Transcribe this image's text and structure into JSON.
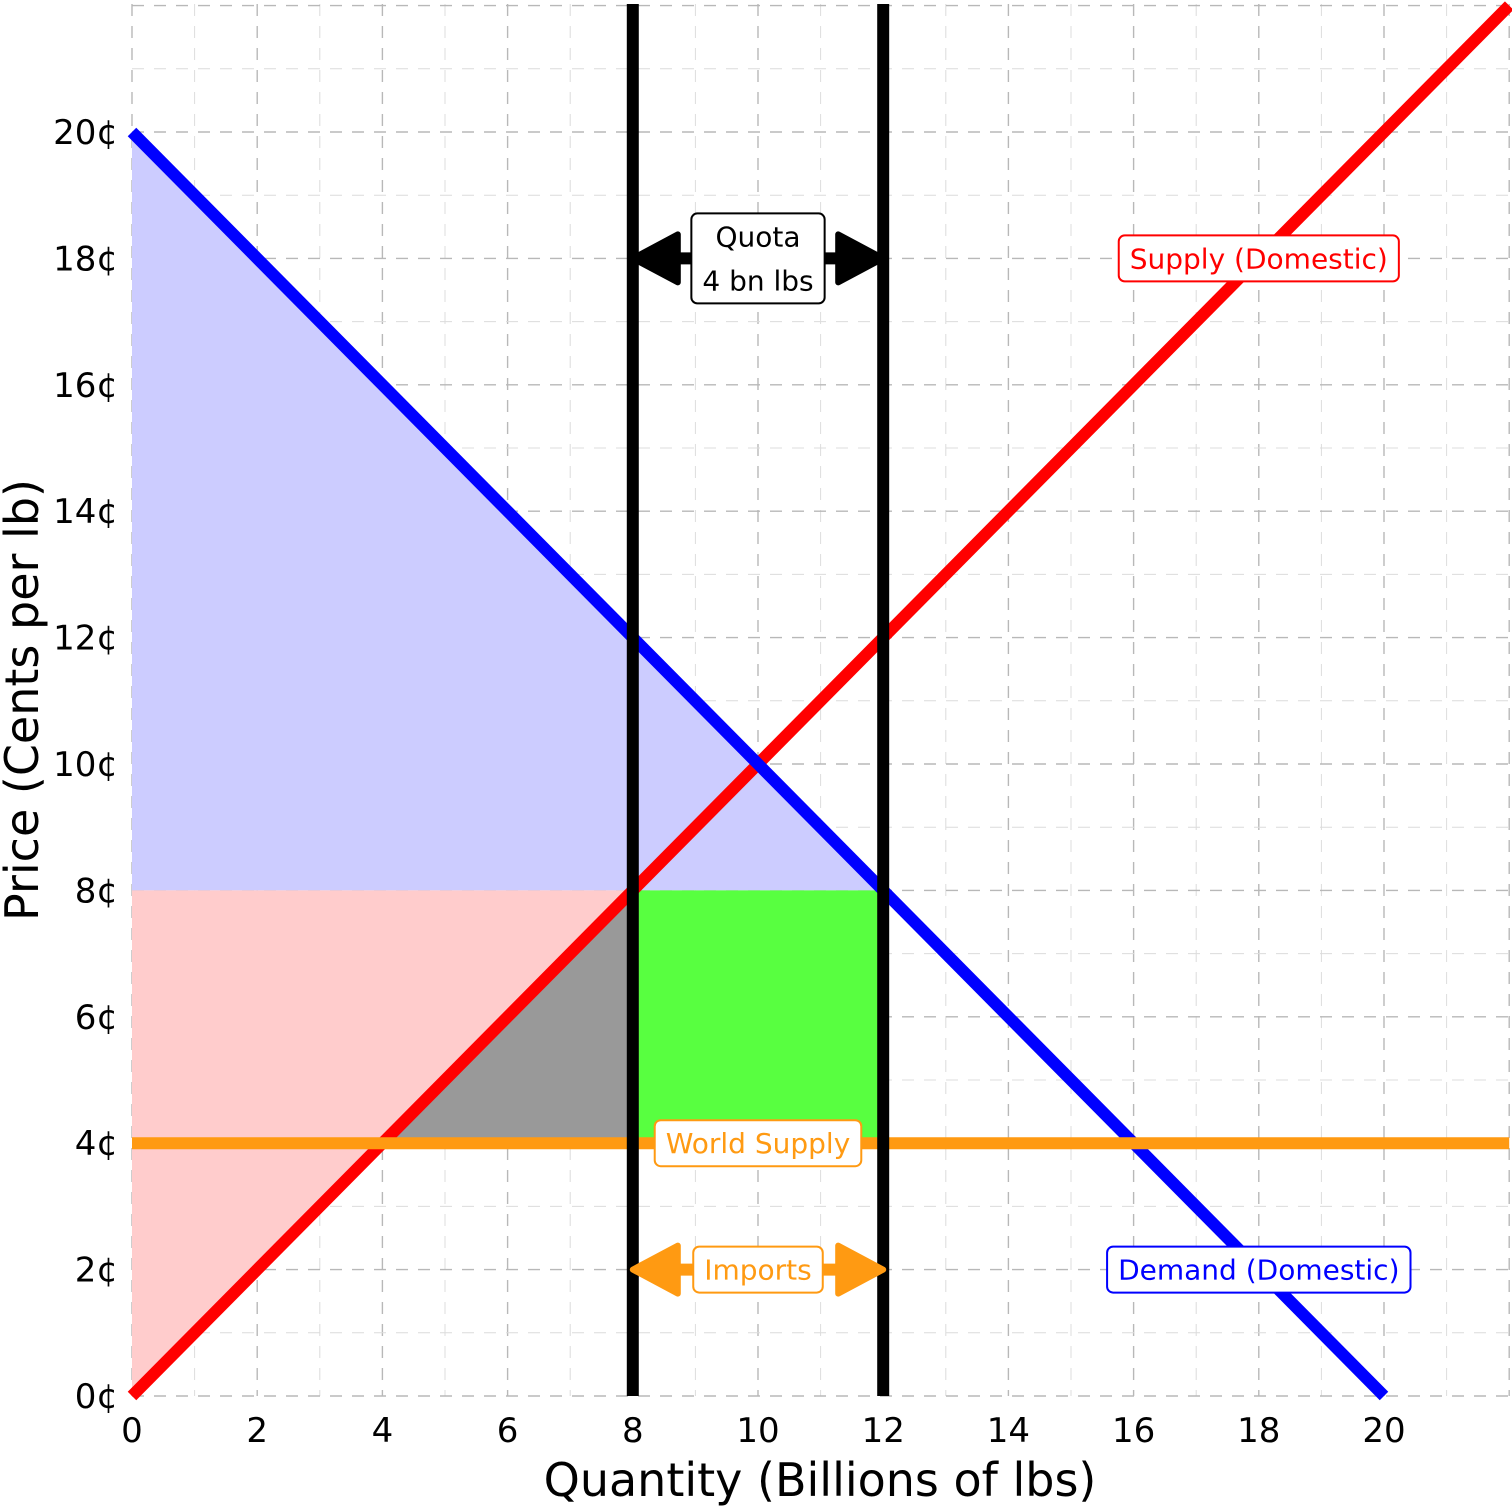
{
  "chart_data": {
    "type": "line",
    "title": "",
    "xlabel": "Quantity (Billions of lbs)",
    "ylabel": "Price (Cents per lb)",
    "xlim": [
      0,
      22
    ],
    "ylim": [
      0,
      22
    ],
    "grid": true,
    "x_ticks": [
      {
        "value": 0,
        "label": "0"
      },
      {
        "value": 2,
        "label": "2"
      },
      {
        "value": 4,
        "label": "4"
      },
      {
        "value": 6,
        "label": "6"
      },
      {
        "value": 8,
        "label": "8"
      },
      {
        "value": 10,
        "label": "10"
      },
      {
        "value": 12,
        "label": "12"
      },
      {
        "value": 14,
        "label": "14"
      },
      {
        "value": 16,
        "label": "16"
      },
      {
        "value": 18,
        "label": "18"
      },
      {
        "value": 20,
        "label": "20"
      }
    ],
    "y_ticks": [
      {
        "value": 0,
        "label": "0¢"
      },
      {
        "value": 2,
        "label": "2¢"
      },
      {
        "value": 4,
        "label": "4¢"
      },
      {
        "value": 6,
        "label": "6¢"
      },
      {
        "value": 8,
        "label": "8¢"
      },
      {
        "value": 10,
        "label": "10¢"
      },
      {
        "value": 12,
        "label": "12¢"
      },
      {
        "value": 14,
        "label": "14¢"
      },
      {
        "value": 16,
        "label": "16¢"
      },
      {
        "value": 18,
        "label": "18¢"
      },
      {
        "value": 20,
        "label": "20¢"
      }
    ],
    "series": [
      {
        "name": "Supply (Domestic)",
        "color": "#ff0000",
        "x": [
          0,
          22
        ],
        "y": [
          0,
          22
        ]
      },
      {
        "name": "Demand (Domestic)",
        "color": "#0000ff",
        "x": [
          0,
          20
        ],
        "y": [
          20,
          0
        ]
      },
      {
        "name": "World Supply",
        "color": "#ff9a12",
        "x": [
          0,
          22
        ],
        "y": [
          4,
          4
        ]
      }
    ],
    "vertical_lines": [
      {
        "x": 8,
        "color": "#000000"
      },
      {
        "x": 12,
        "color": "#000000"
      }
    ],
    "regions": [
      {
        "color": "#ccccff",
        "points": [
          [
            0,
            20
          ],
          [
            0,
            8
          ],
          [
            12,
            8
          ]
        ]
      },
      {
        "color": "#ffcccc",
        "points": [
          [
            0,
            8
          ],
          [
            0,
            0
          ],
          [
            8,
            8
          ]
        ]
      },
      {
        "color": "#999999",
        "points": [
          [
            4,
            4
          ],
          [
            8,
            4
          ],
          [
            8,
            8
          ]
        ]
      },
      {
        "color": "#58ff40",
        "points": [
          [
            8,
            4
          ],
          [
            12,
            4
          ],
          [
            12,
            8
          ],
          [
            8,
            8
          ]
        ]
      }
    ],
    "arrows": [
      {
        "x_from": 8,
        "x_to": 12,
        "y": 18,
        "color": "#000000"
      },
      {
        "x_from": 8,
        "x_to": 12,
        "y": 2,
        "color": "#ff9a12"
      }
    ],
    "annotations": [
      {
        "lines": [
          "Supply (Domestic)"
        ],
        "x": 18,
        "y": 18,
        "color": "#ff0000"
      },
      {
        "lines": [
          "Demand (Domestic)"
        ],
        "x": 18,
        "y": 2,
        "color": "#0000ff"
      },
      {
        "lines": [
          "World Supply"
        ],
        "x": 10,
        "y": 4,
        "color": "#ff9a12"
      },
      {
        "lines": [
          "Imports"
        ],
        "x": 10,
        "y": 2,
        "color": "#ff9a12"
      },
      {
        "lines": [
          "Quota",
          "4 bn lbs"
        ],
        "x": 10,
        "y": 18,
        "color": "#000000"
      }
    ]
  }
}
